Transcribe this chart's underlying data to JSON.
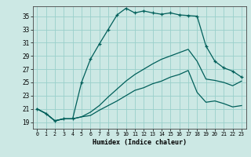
{
  "xlabel": "Humidex (Indice chaleur)",
  "bg_color": "#cce8e4",
  "grid_color": "#99d0ca",
  "line_color": "#005f5a",
  "xlim": [
    -0.5,
    23.5
  ],
  "ylim": [
    18.0,
    36.5
  ],
  "yticks": [
    19,
    21,
    23,
    25,
    27,
    29,
    31,
    33,
    35
  ],
  "xticks": [
    0,
    1,
    2,
    3,
    4,
    5,
    6,
    7,
    8,
    9,
    10,
    11,
    12,
    13,
    14,
    15,
    16,
    17,
    18,
    19,
    20,
    21,
    22,
    23
  ],
  "s1_x": [
    0,
    1,
    2,
    3,
    4,
    5,
    6,
    7,
    8,
    9,
    10,
    11,
    12,
    13,
    14,
    15,
    16,
    17,
    18,
    19,
    20,
    21,
    22,
    23
  ],
  "s1_y": [
    21.0,
    20.3,
    19.2,
    19.5,
    19.5,
    25.0,
    28.5,
    30.8,
    33.0,
    35.2,
    36.2,
    35.5,
    35.8,
    35.5,
    35.3,
    35.5,
    35.2,
    35.1,
    35.0,
    30.5,
    28.2,
    27.2,
    26.7,
    25.8
  ],
  "s2_x": [
    0,
    1,
    2,
    3,
    4,
    5,
    6,
    7,
    8,
    9,
    10,
    11,
    12,
    13,
    14,
    15,
    16,
    17,
    18,
    19,
    20,
    21,
    22,
    23
  ],
  "s2_y": [
    21.0,
    20.3,
    19.2,
    19.5,
    19.5,
    19.8,
    20.5,
    21.5,
    22.8,
    24.0,
    25.2,
    26.2,
    27.0,
    27.8,
    28.5,
    29.0,
    29.5,
    30.0,
    28.2,
    25.5,
    25.3,
    25.0,
    24.5,
    25.2
  ],
  "s3_x": [
    0,
    1,
    2,
    3,
    4,
    5,
    6,
    7,
    8,
    9,
    10,
    11,
    12,
    13,
    14,
    15,
    16,
    17,
    18,
    19,
    20,
    21,
    22,
    23
  ],
  "s3_y": [
    21.0,
    20.3,
    19.2,
    19.5,
    19.5,
    19.8,
    20.0,
    20.8,
    21.5,
    22.2,
    23.0,
    23.8,
    24.2,
    24.8,
    25.2,
    25.8,
    26.2,
    26.8,
    23.5,
    22.0,
    22.2,
    21.8,
    21.3,
    21.5
  ],
  "figwidth": 3.2,
  "figheight": 2.0,
  "dpi": 100
}
